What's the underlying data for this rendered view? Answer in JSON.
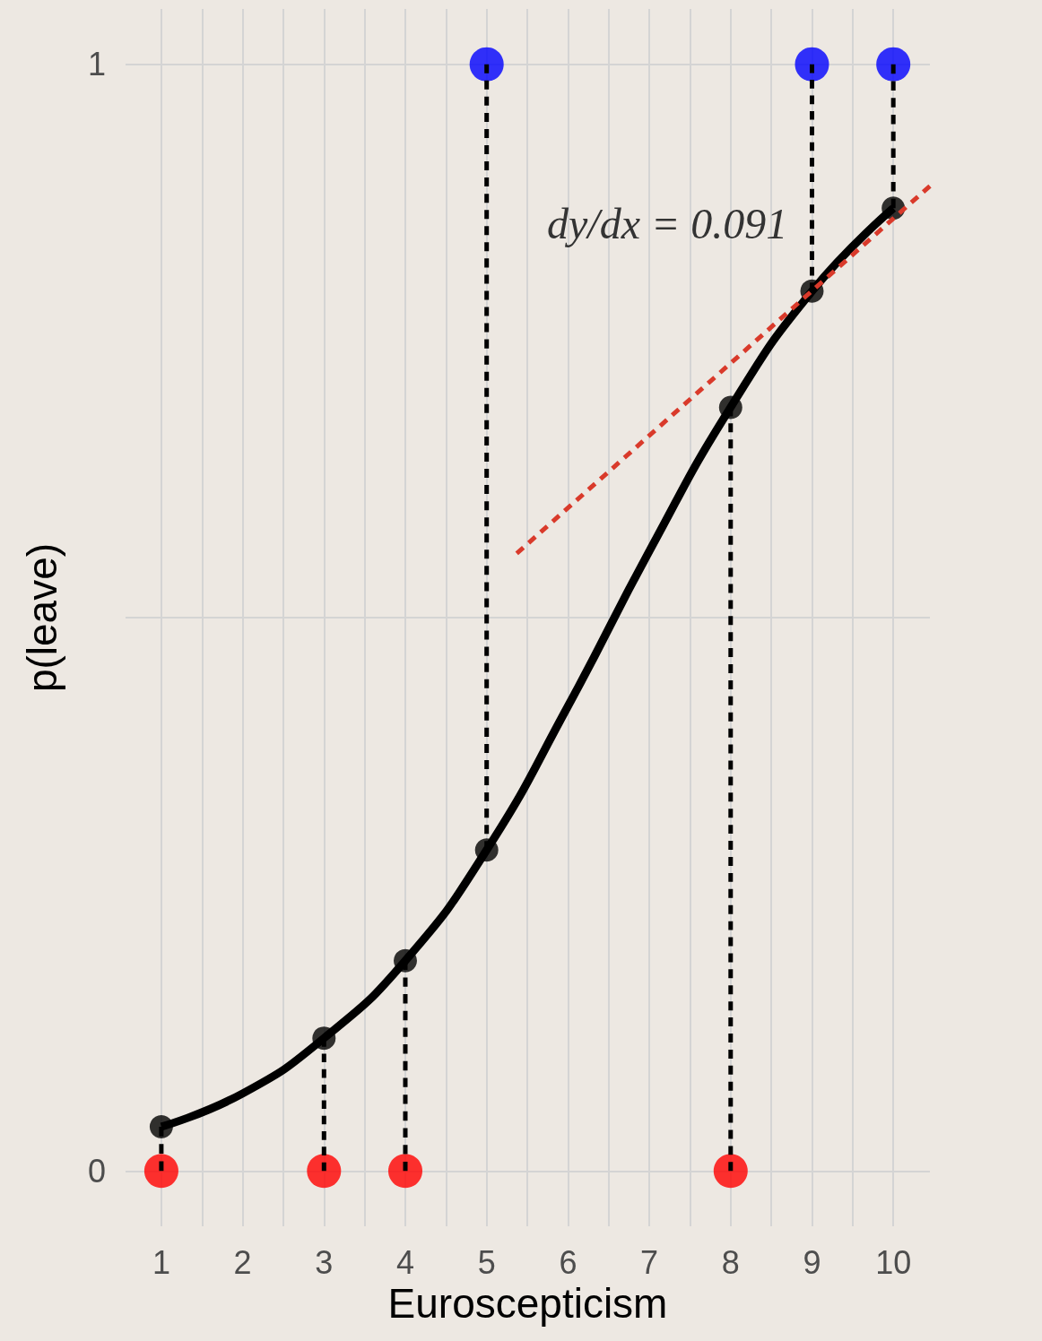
{
  "chart_data": {
    "type": "line",
    "xlabel": "Euroscepticism",
    "ylabel": "p(leave)",
    "xlim": [
      0.56,
      10.45
    ],
    "ylim": [
      -0.05,
      1.05
    ],
    "xticks": [
      1,
      {
        "value": 1.5,
        "label": null
      },
      2,
      {
        "value": 2.5,
        "label": null
      },
      3,
      {
        "value": 3.5,
        "label": null
      },
      4,
      {
        "value": 4.5,
        "label": null
      },
      5,
      {
        "value": 5.5,
        "label": null
      },
      6,
      {
        "value": 6.5,
        "label": null
      },
      7,
      {
        "value": 7.5,
        "label": null
      },
      8,
      {
        "value": 8.5,
        "label": null
      },
      9,
      {
        "value": 9.5,
        "label": null
      },
      10
    ],
    "yticks": [
      0,
      {
        "value": 0.5,
        "label": null
      },
      1
    ],
    "grid": true,
    "annotations": [
      "dy/dx = 0.091"
    ],
    "series": [
      {
        "color": "#000000",
        "marker": "none",
        "line_style": "solid",
        "x": [
          1,
          2,
          3,
          4,
          5,
          6,
          7,
          8,
          9,
          10
        ],
        "values": [
          0.04,
          0.07,
          0.12,
          0.19,
          0.29,
          0.42,
          0.56,
          0.69,
          0.795,
          0.87
        ]
      },
      {
        "color": "#000000",
        "marker": "none",
        "line_style": "dashed",
        "x": [
          1,
          1
        ],
        "values": [
          0,
          0.04
        ]
      },
      {
        "color": "#000000",
        "marker": "none",
        "line_style": "dashed",
        "x": [
          3,
          3
        ],
        "values": [
          0,
          0.12
        ]
      },
      {
        "color": "#000000",
        "marker": "none",
        "line_style": "dashed",
        "x": [
          4,
          4
        ],
        "values": [
          0,
          0.19
        ]
      },
      {
        "color": "#000000",
        "marker": "none",
        "line_style": "dashed",
        "x": [
          5,
          5
        ],
        "values": [
          1,
          0.29
        ]
      },
      {
        "color": "#000000",
        "marker": "none",
        "line_style": "dashed",
        "x": [
          8,
          8
        ],
        "values": [
          0,
          0.69
        ]
      },
      {
        "color": "#000000",
        "marker": "none",
        "line_style": "dashed",
        "x": [
          9,
          9
        ],
        "values": [
          1,
          0.795
        ]
      },
      {
        "color": "#000000",
        "marker": "none",
        "line_style": "dashed",
        "x": [
          10,
          10
        ],
        "values": [
          1,
          0.87
        ]
      },
      {
        "color": "#d93a2b",
        "marker": "none",
        "line_style": "dashed",
        "x": [
          5.37,
          10.45
        ],
        "values": [
          0.558,
          0.89
        ]
      },
      {
        "type": "scatter",
        "color": "#000000",
        "marker": "circle",
        "x": [
          1,
          3,
          4,
          5,
          8,
          9,
          10
        ],
        "values": [
          0.04,
          0.12,
          0.19,
          0.29,
          0.69,
          0.795,
          0.87
        ]
      },
      {
        "type": "scatter",
        "color": "#ff0000",
        "marker": "circle",
        "x": [
          1,
          3,
          4,
          8
        ],
        "values": [
          0,
          0,
          0,
          0
        ]
      },
      {
        "type": "scatter",
        "color": "#0000ff",
        "marker": "circle",
        "x": [
          5,
          9,
          10
        ],
        "values": [
          1,
          1,
          1
        ]
      }
    ]
  }
}
